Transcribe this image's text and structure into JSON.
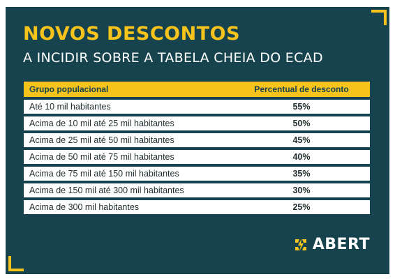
{
  "header": {
    "title": "NOVOS DESCONTOS",
    "subtitle": "A INCIDIR SOBRE A TABELA CHEIA DO ECAD"
  },
  "table": {
    "columns": [
      "Grupo populacional",
      "Percentual de desconto"
    ],
    "rows": [
      {
        "group": "Até 10 mil habitantes",
        "discount": "55%"
      },
      {
        "group": "Acima de 10 mil até 25 mil habitantes",
        "discount": "50%"
      },
      {
        "group": "Acima de 25 mil até 50 mil habitantes",
        "discount": "45%"
      },
      {
        "group": "Acima de 50 mil até 75 mil habitantes",
        "discount": "40%"
      },
      {
        "group": "Acima de 75 mil até 150 mil habitantes",
        "discount": "35%"
      },
      {
        "group": "Acima de 150 mil até 300 mil habitantes",
        "discount": "30%"
      },
      {
        "group": "Acima de 300 mil habitantes",
        "discount": "25%"
      }
    ]
  },
  "logo": {
    "text": "ABERT",
    "icon": "abert-lightning-logo-icon"
  },
  "colors": {
    "background": "#16434d",
    "accent": "#f6c21c",
    "text_light": "#ffffff"
  }
}
